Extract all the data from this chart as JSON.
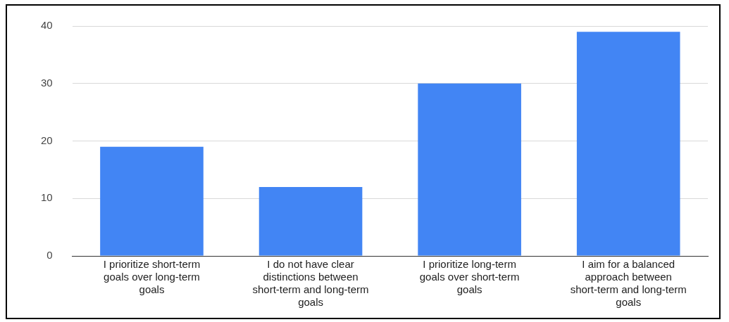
{
  "chart_data": {
    "type": "bar",
    "categories": [
      "I prioritize short-term goals over long-term goals",
      "I do not have clear distinctions between short-term and long-term goals",
      "I prioritize long-term goals over short-term goals",
      "I aim for a balanced approach between short-term and long-term goals"
    ],
    "values": [
      19,
      12,
      30,
      39
    ],
    "color": "#4285f4",
    "ylim": [
      0,
      40
    ],
    "yticks": [
      0,
      10,
      20,
      30,
      40
    ],
    "grid": "y",
    "legend": false
  }
}
